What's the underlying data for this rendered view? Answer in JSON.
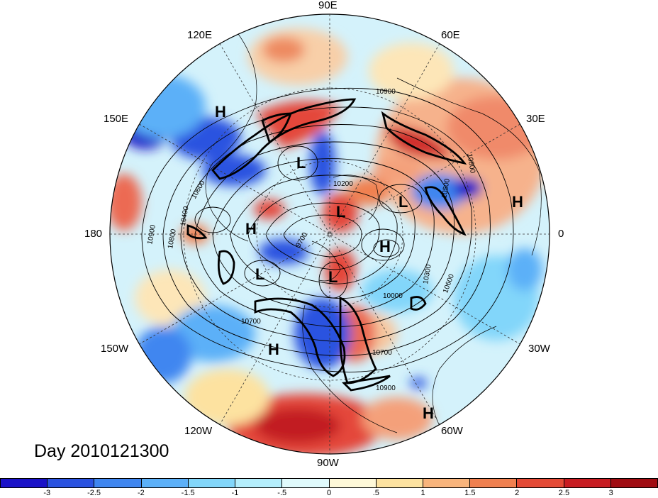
{
  "title": "Day 2010121300",
  "longitude_labels": {
    "e90": "90E",
    "e60": "60E",
    "e30": "30E",
    "e120": "120E",
    "e150": "150E",
    "e180": "180",
    "zero": "0",
    "w150": "150W",
    "w120": "120W",
    "w90": "90W",
    "w60": "60W",
    "w30": "30W"
  },
  "pressure_systems": {
    "h1": "H",
    "h2": "H",
    "h3": "H",
    "h4": "H",
    "h5": "H",
    "h6": "H",
    "l1": "L",
    "l2": "L",
    "l3": "L",
    "l4": "L",
    "l5": "L"
  },
  "contour_labels": {
    "c1": "10900",
    "c2": "10800",
    "c3": "10600",
    "c4": "10500",
    "c5": "10400",
    "c6": "10800",
    "c7": "10900",
    "c8": "10700",
    "c9": "10200",
    "c10": "9700",
    "c11": "10300",
    "c12": "10000",
    "c13": "10600",
    "c14": "10700",
    "c15": "10900"
  },
  "colorbar": {
    "colors": [
      "#1a12c8",
      "#2a52e0",
      "#3f86f0",
      "#5cb0f8",
      "#82d6fa",
      "#b4eefc",
      "#e0fafc",
      "#fef8d8",
      "#fde2a0",
      "#f8b47c",
      "#f08050",
      "#e44a36",
      "#c81c22",
      "#a00c12"
    ],
    "ticks": [
      "-3",
      "-2.5",
      "-2",
      "-1.5",
      "-1",
      "-.5",
      "0",
      ".5",
      "1",
      "1.5",
      "2",
      "2.5",
      "3"
    ]
  }
}
